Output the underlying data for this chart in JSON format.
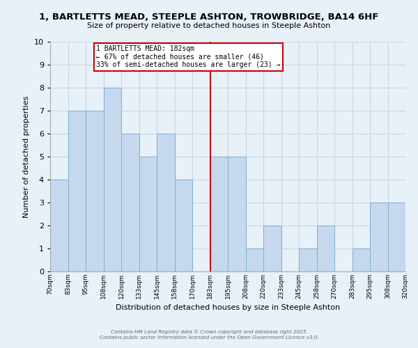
{
  "title": "1, BARTLETTS MEAD, STEEPLE ASHTON, TROWBRIDGE, BA14 6HF",
  "subtitle": "Size of property relative to detached houses in Steeple Ashton",
  "xlabel": "Distribution of detached houses by size in Steeple Ashton",
  "ylabel": "Number of detached properties",
  "bin_labels": [
    "70sqm",
    "83sqm",
    "95sqm",
    "108sqm",
    "120sqm",
    "133sqm",
    "145sqm",
    "158sqm",
    "170sqm",
    "183sqm",
    "195sqm",
    "208sqm",
    "220sqm",
    "233sqm",
    "245sqm",
    "258sqm",
    "270sqm",
    "283sqm",
    "295sqm",
    "308sqm",
    "320sqm"
  ],
  "bar_values": [
    4,
    7,
    7,
    8,
    6,
    5,
    6,
    4,
    0,
    5,
    5,
    1,
    2,
    0,
    1,
    2,
    0,
    1,
    3,
    3
  ],
  "bar_color": "#c5d8ed",
  "bar_edge_color": "#7bafd4",
  "grid_color": "#c8d8e8",
  "background_color": "#e8f0f8",
  "vline_color": "#cc0000",
  "annotation_text": "1 BARTLETTS MEAD: 182sqm\n← 67% of detached houses are smaller (46)\n33% of semi-detached houses are larger (23) →",
  "annotation_box_color": "#ffffff",
  "annotation_box_edge": "#cc0000",
  "ylim": [
    0,
    10
  ],
  "yticks": [
    0,
    1,
    2,
    3,
    4,
    5,
    6,
    7,
    8,
    9,
    10
  ],
  "footer_line1": "Contains HM Land Registry data © Crown copyright and database right 2025.",
  "footer_line2": "Contains public sector information licensed under the Open Government Licence v3.0."
}
